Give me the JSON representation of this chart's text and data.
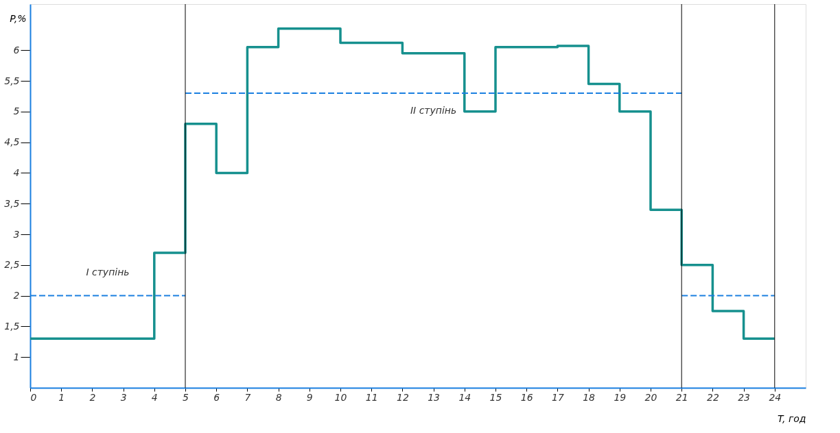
{
  "chart_data": {
    "type": "step",
    "xlabel": "T, год",
    "ylabel": "P,%",
    "xlim": [
      0,
      25
    ],
    "xticks": [
      0,
      1,
      2,
      3,
      4,
      5,
      6,
      7,
      8,
      9,
      10,
      11,
      12,
      13,
      14,
      15,
      16,
      17,
      18,
      19,
      20,
      21,
      22,
      23,
      24
    ],
    "ylim": [
      0.5,
      6.75
    ],
    "yticks": [
      1,
      {
        "value": 1.5,
        "label": "1,5"
      },
      2,
      {
        "value": 2.5,
        "label": "2,5"
      },
      3,
      {
        "value": 3.5,
        "label": "3,5"
      },
      4,
      {
        "value": 4.5,
        "label": "4,5"
      },
      5,
      {
        "value": 5.5,
        "label": "5,5"
      },
      6
    ],
    "grid": false,
    "marker": "none",
    "series": [
      {
        "color": "#16908e",
        "line_style": "solid",
        "x": [
          0,
          1,
          2,
          3,
          4,
          5,
          6,
          7,
          8,
          9,
          10,
          11,
          12,
          13,
          14,
          15,
          16,
          17,
          18,
          19,
          20,
          21,
          22,
          23,
          24
        ],
        "values": [
          1.3,
          1.3,
          1.3,
          1.3,
          2.7,
          4.8,
          4.0,
          6.05,
          6.35,
          6.35,
          6.12,
          6.12,
          5.95,
          5.95,
          5.0,
          6.05,
          6.05,
          6.07,
          5.45,
          5.0,
          3.4,
          2.5,
          1.75,
          1.3,
          1.3
        ]
      },
      {
        "type": "line",
        "name": "I ступінь",
        "color": "#1a7fe0",
        "line_style": "dashed",
        "x": [
          0,
          5
        ],
        "values": [
          2,
          2
        ]
      },
      {
        "type": "line",
        "color": "#1a7fe0",
        "line_style": "dashed",
        "x": [
          21,
          24
        ],
        "values": [
          2,
          2
        ]
      },
      {
        "type": "line",
        "name": "II ступінь",
        "color": "#1a7fe0",
        "line_style": "dashed",
        "x": [
          5,
          21
        ],
        "values": [
          5.3,
          5.3
        ]
      }
    ],
    "ref_lines": [
      {
        "axis": "x",
        "value": 5,
        "color": "#000000"
      },
      {
        "axis": "x",
        "value": 21,
        "color": "#000000"
      },
      {
        "axis": "x",
        "value": 24,
        "color": "#000000"
      }
    ]
  }
}
